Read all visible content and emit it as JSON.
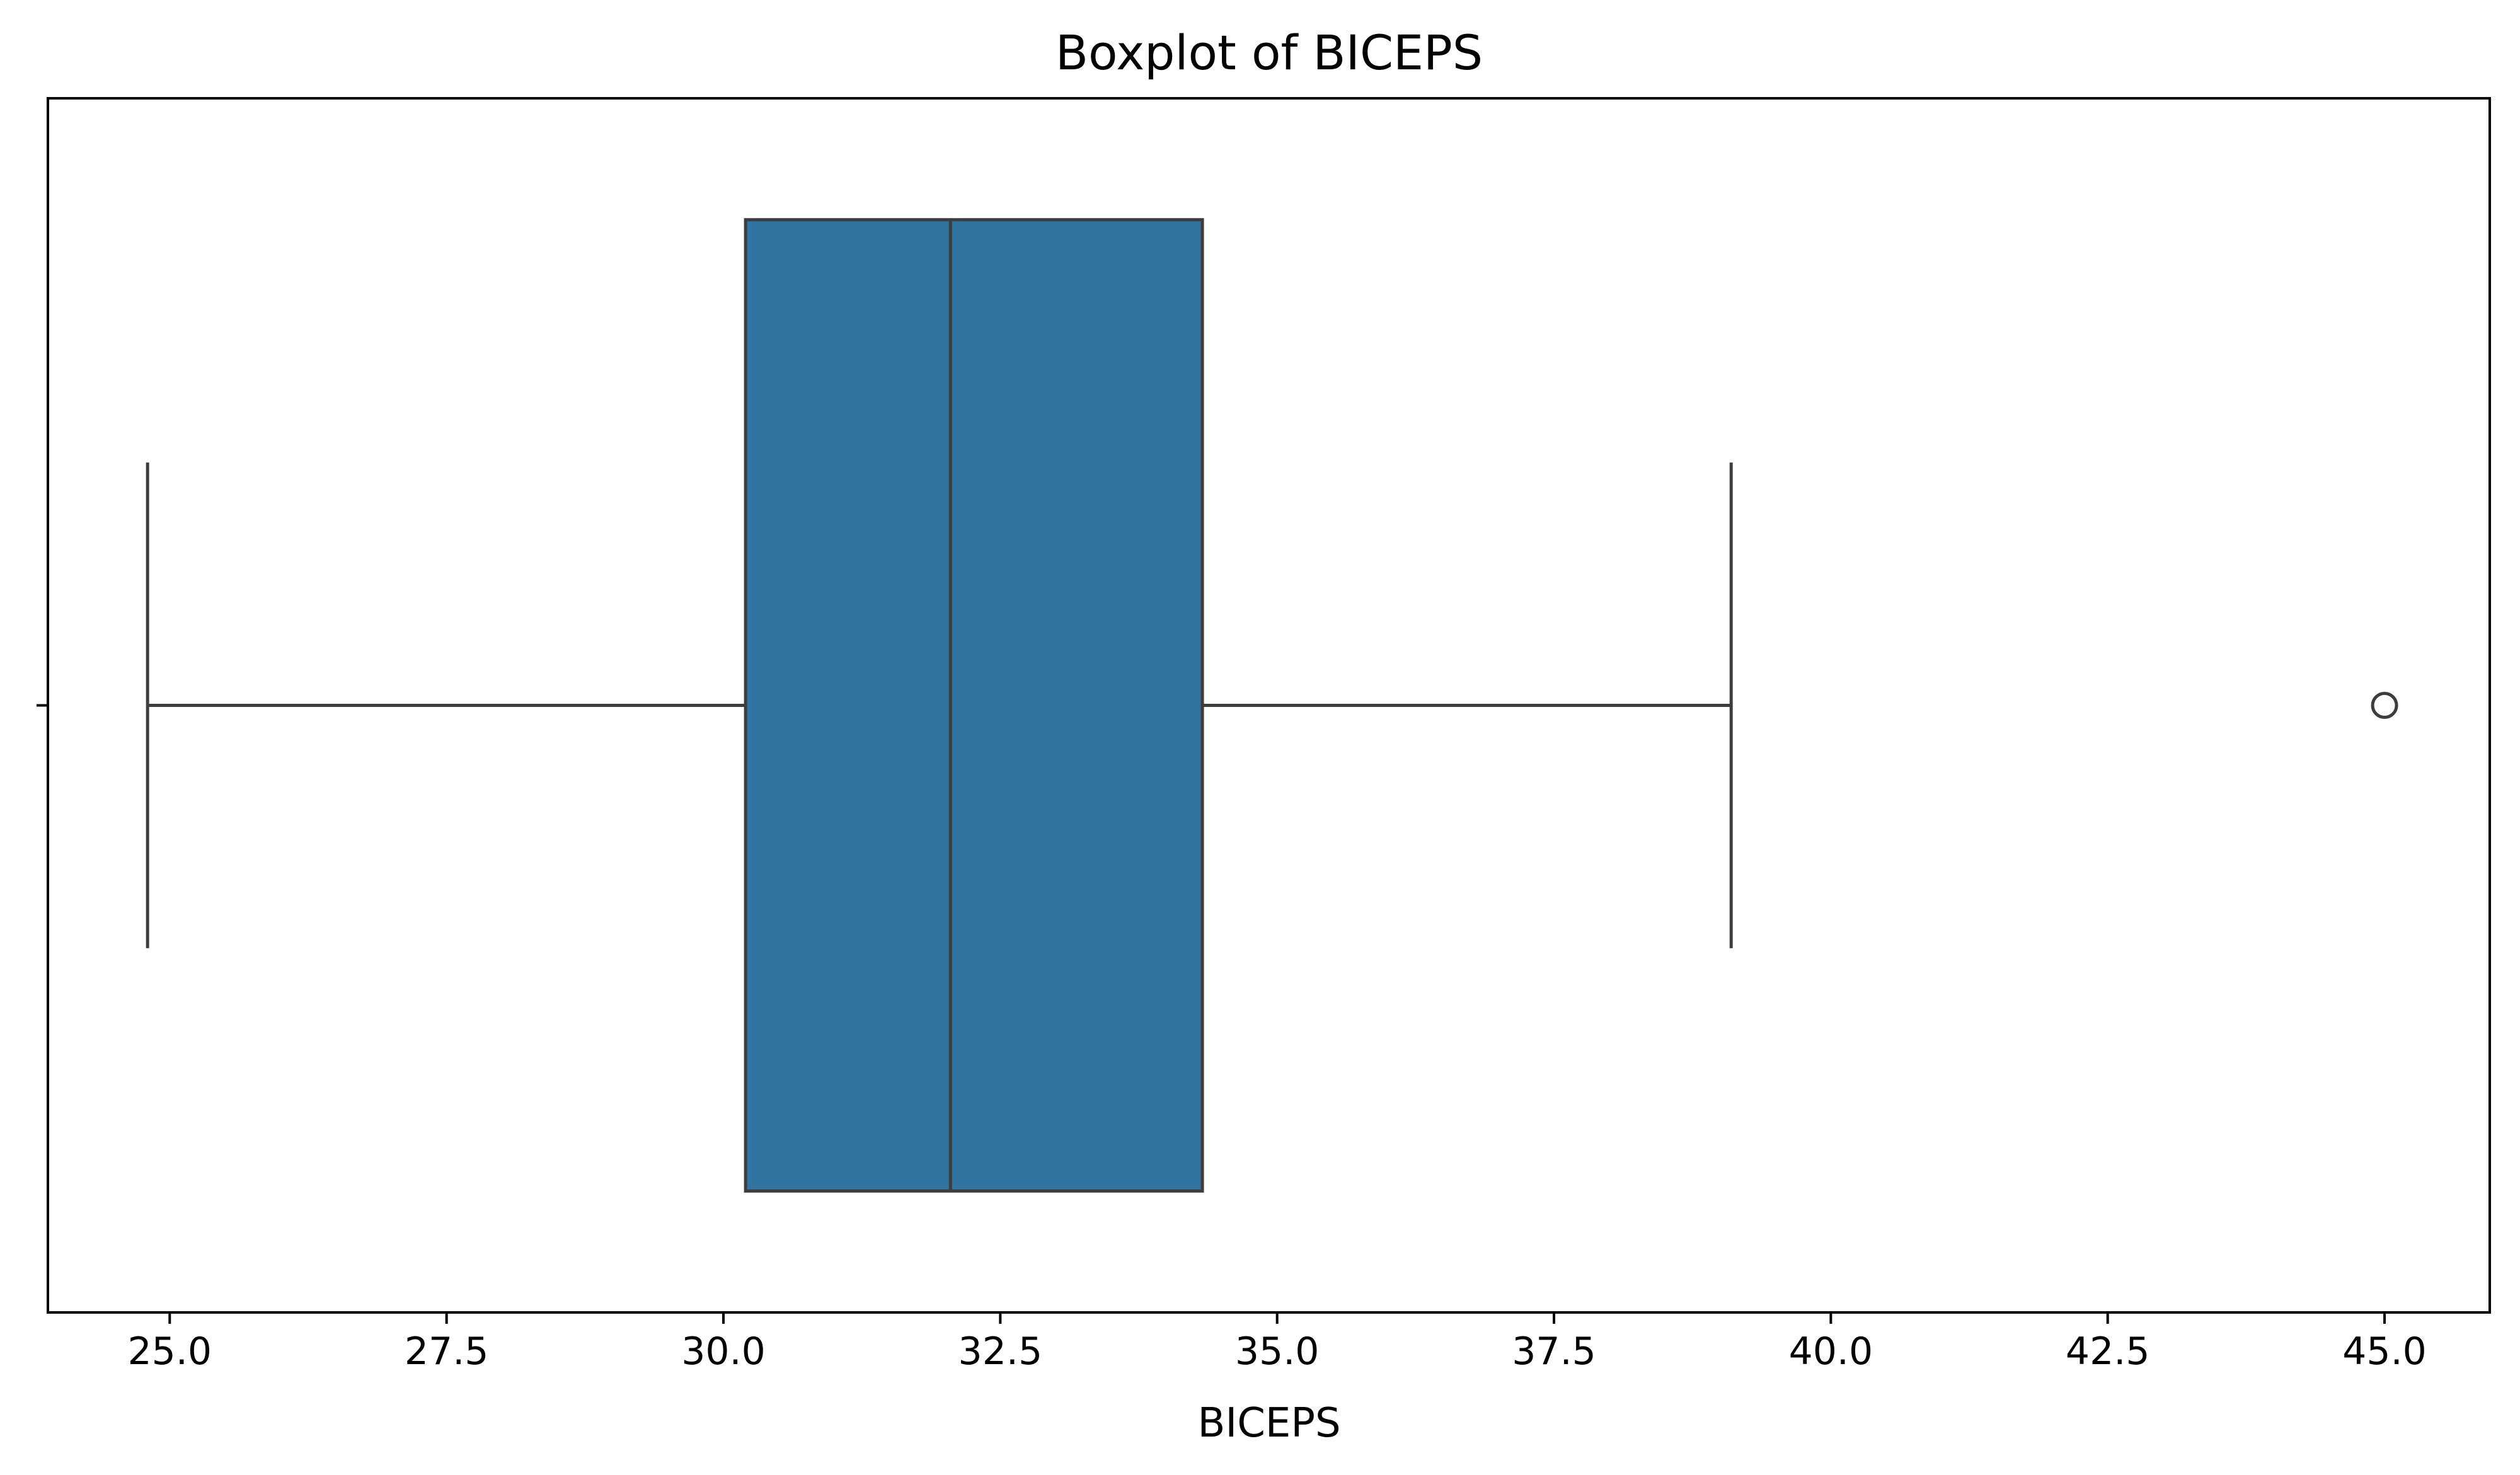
{
  "chart_data": {
    "type": "boxplot",
    "title": "Boxplot of BICEPS",
    "xlabel": "BICEPS",
    "ylabel": "",
    "xlim": [
      23.9,
      45.95
    ],
    "xticks": [
      25.0,
      27.5,
      30.0,
      32.5,
      35.0,
      37.5,
      40.0,
      42.5,
      45.0
    ],
    "xtick_labels": [
      "25.0",
      "27.5",
      "30.0",
      "32.5",
      "35.0",
      "37.5",
      "40.0",
      "42.5",
      "45.0"
    ],
    "grid": false,
    "series": [
      {
        "name": "BICEPS",
        "whisker_low": 24.8,
        "q1": 30.2,
        "median": 32.05,
        "q3": 34.325,
        "whisker_high": 39.1,
        "outliers": [
          45.0
        ]
      }
    ],
    "colors": {
      "box_fill": "#3274a1",
      "line": "#3d3d3d",
      "axes": "#000000"
    }
  }
}
